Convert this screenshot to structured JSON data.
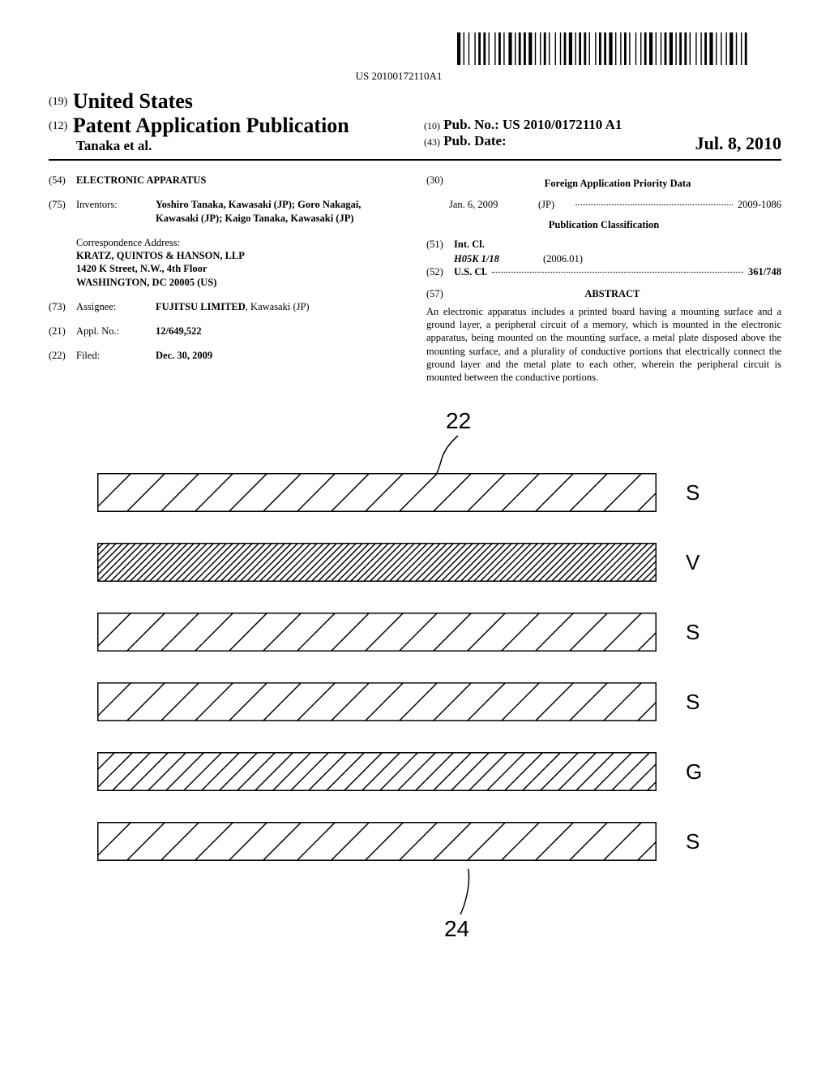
{
  "barcode_text": "US 20100172110A1",
  "header": {
    "country_prefix": "(19)",
    "country": "United States",
    "doc_type_prefix": "(12)",
    "doc_type": "Patent Application Publication",
    "authors": "Tanaka et al.",
    "pubno_prefix": "(10)",
    "pubno_label": "Pub. No.:",
    "pubno": "US 2010/0172110 A1",
    "pubdate_prefix": "(43)",
    "pubdate_label": "Pub. Date:",
    "pubdate": "Jul. 8, 2010"
  },
  "left": {
    "title_num": "(54)",
    "title": "ELECTRONIC APPARATUS",
    "inventors_num": "(75)",
    "inventors_label": "Inventors:",
    "inventors": "Yoshiro Tanaka, Kawasaki (JP); Goro Nakagai, Kawasaki (JP); Kaigo Tanaka, Kawasaki (JP)",
    "corr_label": "Correspondence Address:",
    "corr_name": "KRATZ, QUINTOS & HANSON, LLP",
    "corr_street": "1420 K Street, N.W., 4th Floor",
    "corr_city": "WASHINGTON, DC 20005 (US)",
    "assignee_num": "(73)",
    "assignee_label": "Assignee:",
    "assignee": "FUJITSU LIMITED",
    "assignee_loc": ", Kawasaki (JP)",
    "applno_num": "(21)",
    "applno_label": "Appl. No.:",
    "applno": "12/649,522",
    "filed_num": "(22)",
    "filed_label": "Filed:",
    "filed": "Dec. 30, 2009"
  },
  "right": {
    "foreign_num": "(30)",
    "foreign_title": "Foreign Application Priority Data",
    "foreign_date": "Jan. 6, 2009",
    "foreign_ctry": "(JP)",
    "foreign_app": "2009-1086",
    "pubclass_title": "Publication Classification",
    "intcl_num": "(51)",
    "intcl_label": "Int. Cl.",
    "intcl_code": "H05K 1/18",
    "intcl_year": "(2006.01)",
    "uscl_num": "(52)",
    "uscl_label": "U.S. Cl.",
    "uscl_val": "361/748",
    "abstract_num": "(57)",
    "abstract_label": "ABSTRACT",
    "abstract_text": "An electronic apparatus includes a printed board having a mounting surface and a ground layer, a peripheral circuit of a memory, which is mounted in the electronic apparatus, being mounted on the mounting surface, a metal plate disposed above the mounting surface, and a plurality of conductive portions that electrically connect the ground layer and the metal plate to each other, wherein the peripheral circuit is mounted between the conductive portions."
  },
  "figure": {
    "ref_top": "22",
    "ref_bottom": "24",
    "layers": [
      {
        "label": "S",
        "pattern": "diag-right"
      },
      {
        "label": "V",
        "pattern": "diag-left-dense"
      },
      {
        "label": "S",
        "pattern": "diag-right"
      },
      {
        "label": "S",
        "pattern": "diag-right"
      },
      {
        "label": "G",
        "pattern": "diag-left"
      },
      {
        "label": "S",
        "pattern": "diag-right"
      }
    ],
    "layer_width": 690,
    "layer_height": 48,
    "stroke_color": "#000000",
    "stroke_width": 1.5
  }
}
